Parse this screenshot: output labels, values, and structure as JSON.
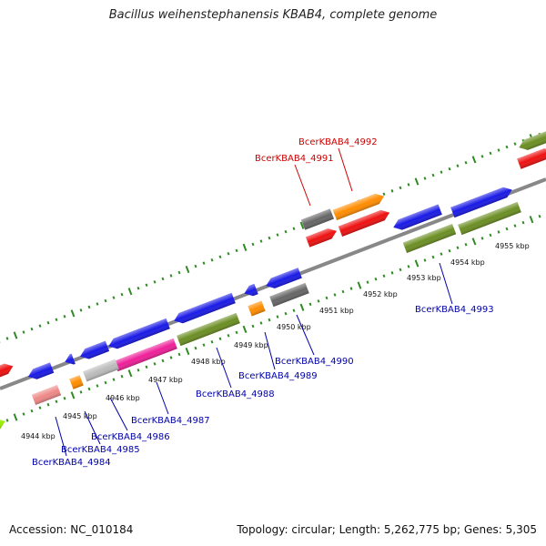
{
  "title": "Bacillus weihenstephanensis KBAB4, complete genome",
  "accession": "Accession: NC_010184",
  "topology": "Topology: circular; Length: 5,262,775 bp; Genes: 5,305",
  "colors": {
    "top_label": "#cc0000",
    "bottom_label": "#0000aa",
    "blue": "#1a1ae6",
    "red": "#ee1111",
    "orange": "#ff8c00",
    "gray": "#666666",
    "olive": "#6b8e23",
    "pink": "#ee1f99",
    "salmon": "#ee8888",
    "silver": "#bbbbbb",
    "lime": "#99ee00",
    "tick": "#2e8b22"
  },
  "kbp_labels": [
    "4944 kbp",
    "4945 kbp",
    "4946 kbp",
    "4947 kbp",
    "4948 kbp",
    "4949 kbp",
    "4950 kbp",
    "4951 kbp",
    "4952 kbp",
    "4953 kbp",
    "4954 kbp",
    "4955 kbp"
  ],
  "genes_top": [
    "BcerKBAB4_4992",
    "BcerKBAB4_4991"
  ],
  "genes_bottom": [
    "BcerKBAB4_4993",
    "BcerKBAB4_4990",
    "BcerKBAB4_4989",
    "BcerKBAB4_4988",
    "BcerKBAB4_4987",
    "BcerKBAB4_4986",
    "BcerKBAB4_4985",
    "BcerKBAB4_4984"
  ]
}
